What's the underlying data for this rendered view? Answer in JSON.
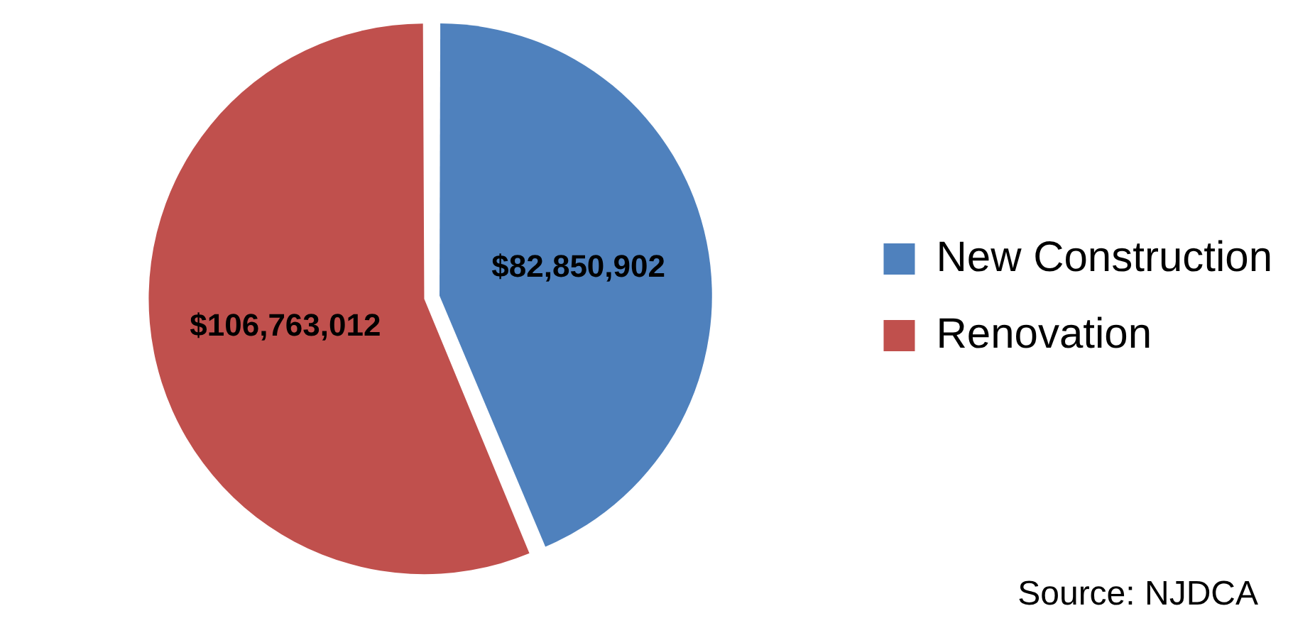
{
  "chart_data": {
    "type": "pie",
    "categories": [
      "New Construction",
      "Renovation"
    ],
    "values": [
      82850902,
      106763012
    ],
    "colors": [
      "#4f81bd",
      "#c0504d"
    ],
    "value_labels": [
      "$82,850,902",
      "$106,763,012"
    ],
    "legend": "right",
    "annotations": [
      "Source: NJDCA"
    ]
  }
}
